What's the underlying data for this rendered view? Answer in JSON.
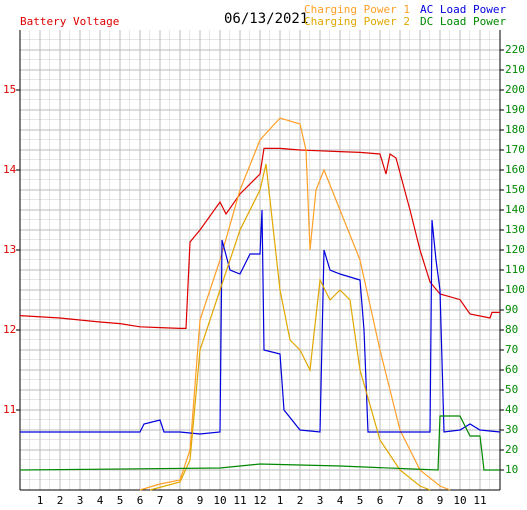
{
  "chart_data": {
    "type": "line",
    "title": "06/13/2021",
    "xlim": [
      0,
      24
    ],
    "xticks": [
      1,
      2,
      3,
      4,
      5,
      6,
      7,
      8,
      9,
      10,
      11,
      12,
      {
        "value": 13,
        "label": "1"
      },
      {
        "value": 14,
        "label": "2"
      },
      {
        "value": 15,
        "label": "3"
      },
      {
        "value": 16,
        "label": "4"
      },
      {
        "value": 17,
        "label": "5"
      },
      {
        "value": 18,
        "label": "6"
      },
      {
        "value": 19,
        "label": "7"
      },
      {
        "value": 20,
        "label": "8"
      },
      {
        "value": 21,
        "label": "9"
      },
      {
        "value": 22,
        "label": "10"
      },
      {
        "value": 23,
        "label": "11"
      }
    ],
    "ylim": [
      10,
      15.75
    ],
    "yticks": [
      11,
      12,
      13,
      14,
      15
    ],
    "y2lim": [
      0,
      230
    ],
    "y2ticks": [
      10,
      20,
      30,
      40,
      50,
      60,
      70,
      80,
      90,
      100,
      110,
      120,
      130,
      140,
      150,
      160,
      170,
      180,
      190,
      200,
      210,
      220
    ],
    "grid": true,
    "series": [
      {
        "name": "Battery Voltage",
        "color": "#dd0000",
        "axis": "y",
        "x": [
          0,
          2,
          4,
          5,
          6,
          7,
          8,
          8.3,
          8.5,
          9,
          10,
          10.3,
          11,
          12,
          12.2,
          13,
          14,
          15,
          16,
          17,
          18,
          18.3,
          18.5,
          18.8,
          19.5,
          20,
          20.5,
          21,
          22,
          22.5,
          23.5,
          23.6,
          24
        ],
        "values": [
          12.18,
          12.15,
          12.1,
          12.08,
          12.04,
          12.03,
          12.02,
          12.02,
          13.1,
          13.25,
          13.6,
          13.45,
          13.7,
          13.95,
          14.27,
          14.27,
          14.25,
          14.24,
          14.23,
          14.22,
          14.2,
          13.95,
          14.2,
          14.15,
          13.5,
          13,
          12.6,
          12.45,
          12.38,
          12.2,
          12.15,
          12.22,
          12.22
        ]
      },
      {
        "name": "Charging Power 1",
        "color": "#ffa028",
        "axis": "y2",
        "x": [
          6,
          7,
          8,
          8.5,
          9,
          10,
          11,
          12,
          13,
          14,
          14.3,
          14.5,
          14.8,
          15.2,
          16,
          17,
          18,
          18.5,
          19,
          20,
          21,
          21.5
        ],
        "values": [
          0,
          3,
          5,
          20,
          85,
          115,
          150,
          175,
          186,
          183,
          170,
          120,
          150,
          160,
          140,
          115,
          70,
          50,
          30,
          10,
          2,
          0
        ]
      },
      {
        "name": "AC Load Power",
        "color": "#0000dd",
        "axis": "y2",
        "x": [
          0,
          6,
          6.2,
          7,
          7.2,
          8,
          9,
          10,
          10.1,
          10.5,
          11,
          11.5,
          12,
          12.1,
          12.2,
          13,
          13.2,
          14,
          15,
          15.2,
          15.5,
          16,
          17,
          17.2,
          17.4,
          18,
          19,
          20,
          20.5,
          20.6,
          20.8,
          21,
          21.2,
          22,
          22.5,
          23,
          24
        ],
        "values": [
          29,
          29,
          33,
          35,
          29,
          29,
          28,
          29,
          125,
          110,
          108,
          118,
          118,
          140,
          70,
          68,
          40,
          30,
          29,
          120,
          110,
          108,
          105,
          80,
          29,
          29,
          29,
          29,
          29,
          135,
          115,
          100,
          29,
          30,
          33,
          30,
          29
        ]
      },
      {
        "name": "Charging Power 2",
        "color": "#e0a800",
        "axis": "y2",
        "x": [
          6.5,
          8,
          8.5,
          9,
          10,
          11,
          12,
          12.3,
          13,
          13.5,
          14,
          14.5,
          15,
          15.5,
          16,
          16.5,
          17,
          18,
          19,
          20,
          20.5
        ],
        "values": [
          0,
          4,
          15,
          70,
          100,
          130,
          150,
          163,
          100,
          75,
          70,
          60,
          105,
          95,
          100,
          95,
          60,
          25,
          10,
          2,
          0
        ]
      },
      {
        "name": "DC Load Power",
        "color": "#008800",
        "axis": "y2",
        "x": [
          0,
          10,
          12,
          16,
          20.9,
          21,
          22,
          22.5,
          23,
          23.2,
          24
        ],
        "values": [
          10,
          11,
          13,
          12,
          10,
          37,
          37,
          27,
          27,
          10,
          10
        ]
      }
    ]
  }
}
